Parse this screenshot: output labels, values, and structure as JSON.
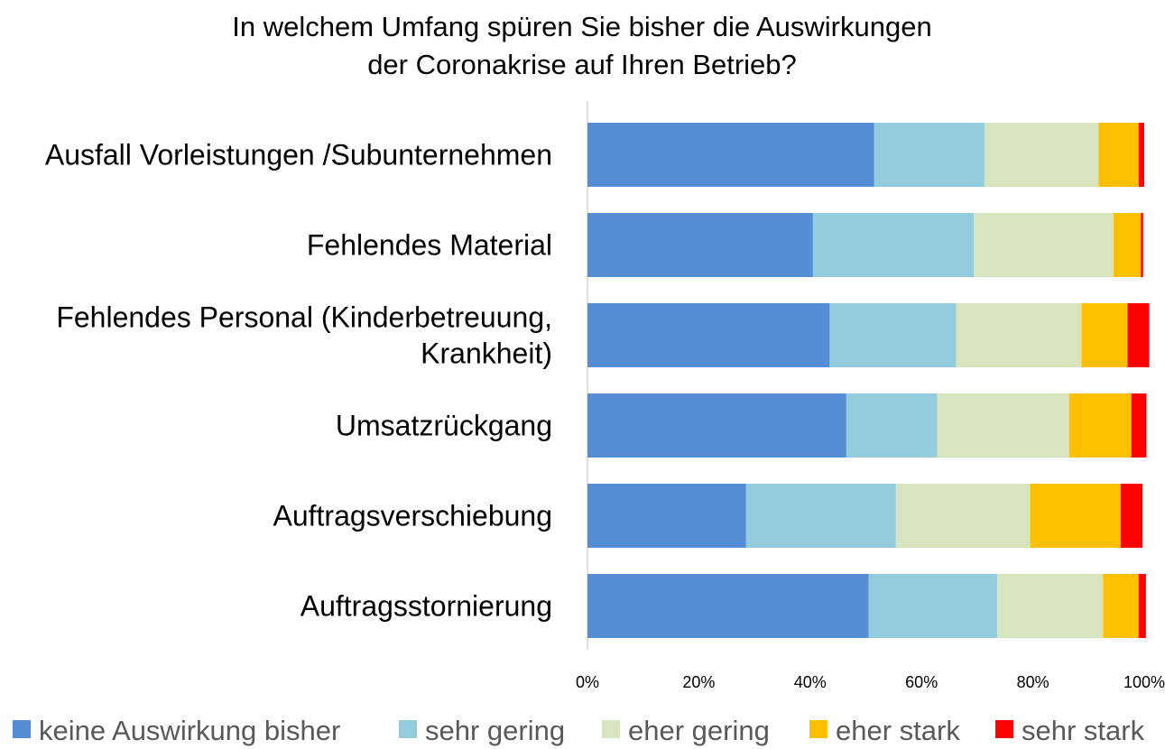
{
  "chart_data": {
    "type": "bar",
    "orientation": "horizontal",
    "stacked": "percent",
    "title_lines": [
      "In welchem Umfang spüren Sie bisher die Auswirkungen",
      "der Coronakrise auf Ihren Betrieb?"
    ],
    "categories": [
      [
        "Ausfall Vorleistungen /Subunternehmen"
      ],
      [
        "Fehlendes Material"
      ],
      [
        "Fehlendes Personal (Kinderbetreuung,",
        "Krankheit)"
      ],
      [
        "Umsatzrückgang"
      ],
      [
        "Auftragsverschiebung"
      ],
      [
        "Auftragsstornierung"
      ]
    ],
    "series": [
      {
        "name": "keine Auswirkung bisher",
        "color": "#558ED5",
        "values": [
          51.5,
          40.5,
          43.5,
          46.5,
          28.5,
          50.5
        ]
      },
      {
        "name": "sehr gering",
        "color": "#93CDDD",
        "values": [
          19.8,
          28.9,
          22.7,
          16.3,
          26.9,
          23.1
        ]
      },
      {
        "name": "eher gering",
        "color": "#D7E4BD",
        "values": [
          20.5,
          25.1,
          22.5,
          23.7,
          24.1,
          19.0
        ]
      },
      {
        "name": "eher stark",
        "color": "#FFC000",
        "values": [
          7.2,
          4.9,
          8.3,
          11.2,
          16.3,
          6.4
        ]
      },
      {
        "name": "sehr stark",
        "color": "#FF0000",
        "values": [
          1.0,
          0.4,
          3.9,
          2.7,
          3.9,
          1.3
        ]
      }
    ],
    "x_ticks": [
      "0%",
      "20%",
      "40%",
      "60%",
      "80%",
      "100%"
    ],
    "xlim": [
      0,
      100
    ],
    "grid": false,
    "legend_position": "bottom"
  }
}
